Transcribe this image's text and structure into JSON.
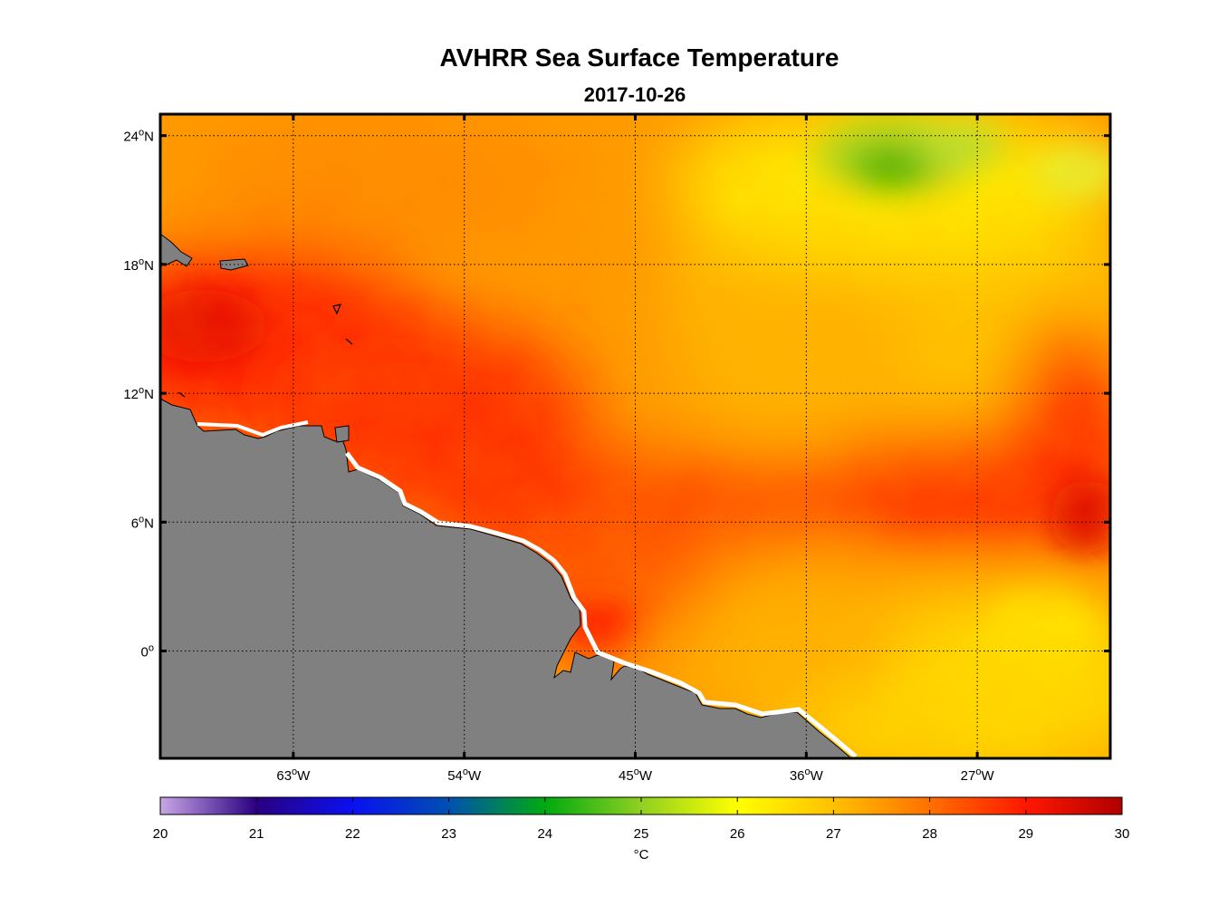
{
  "title": "AVHRR Sea Surface Temperature",
  "subtitle": "2017-10-26",
  "map": {
    "lon_range": [
      -70,
      -20
    ],
    "lat_range": [
      -5,
      25
    ],
    "lon_ticks": [
      {
        "value": -63,
        "num": "63",
        "deg": "o",
        "hemi": "W"
      },
      {
        "value": -54,
        "num": "54",
        "deg": "o",
        "hemi": "W"
      },
      {
        "value": -45,
        "num": "45",
        "deg": "o",
        "hemi": "W"
      },
      {
        "value": -36,
        "num": "36",
        "deg": "o",
        "hemi": "W"
      },
      {
        "value": -27,
        "num": "27",
        "deg": "o",
        "hemi": "W"
      }
    ],
    "lat_ticks": [
      {
        "value": 24,
        "num": "24",
        "deg": "o",
        "hemi": "N"
      },
      {
        "value": 18,
        "num": "18",
        "deg": "o",
        "hemi": "N"
      },
      {
        "value": 12,
        "num": "12",
        "deg": "o",
        "hemi": "N"
      },
      {
        "value": 6,
        "num": "6",
        "deg": "o",
        "hemi": "N"
      },
      {
        "value": 0,
        "num": "0",
        "deg": "o",
        "hemi": ""
      }
    ],
    "grid": "dotted",
    "land_color": "#808080"
  },
  "colorbar": {
    "min": 20,
    "max": 30,
    "ticks": [
      "20",
      "21",
      "22",
      "23",
      "24",
      "25",
      "26",
      "27",
      "28",
      "29",
      "30"
    ],
    "unit_label": "°C",
    "color_stops": [
      {
        "value": 20,
        "color": "#c9a6e6"
      },
      {
        "value": 21,
        "color": "#2a0080"
      },
      {
        "value": 22,
        "color": "#0a10f0"
      },
      {
        "value": 23,
        "color": "#0050b0"
      },
      {
        "value": 24,
        "color": "#00aa10"
      },
      {
        "value": 25,
        "color": "#90d020"
      },
      {
        "value": 26,
        "color": "#ffff00"
      },
      {
        "value": 27,
        "color": "#ffc000"
      },
      {
        "value": 28,
        "color": "#ff7000"
      },
      {
        "value": 29,
        "color": "#ff1800"
      },
      {
        "value": 30,
        "color": "#b00000"
      }
    ]
  }
}
